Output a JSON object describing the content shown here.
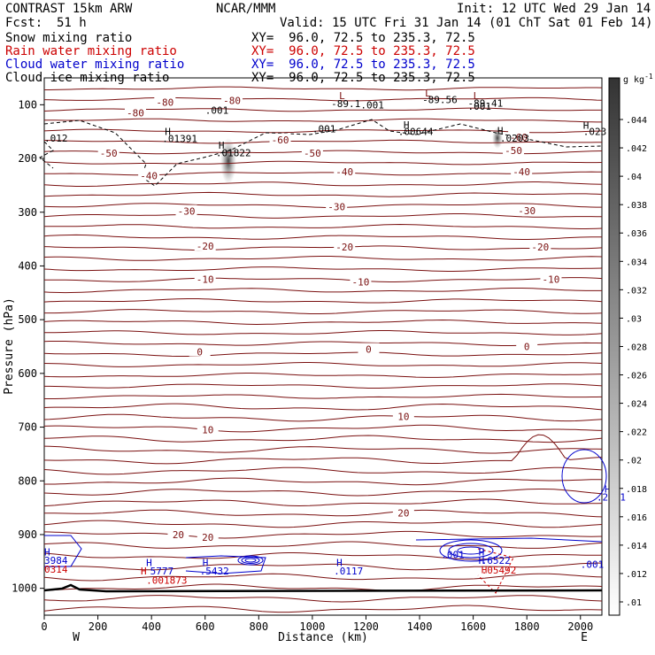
{
  "header": {
    "left1": "CONTRAST 15km ARW",
    "center1": "NCAR/MMM",
    "right1": "Init: 12 UTC Wed 29 Jan 14",
    "fcst_label": "Fcst:",
    "fcst_value": "51 h",
    "valid": "Valid: 15 UTC Fri 31 Jan 14 (01 ChT Sat 01 Feb 14)"
  },
  "fields": [
    {
      "name": "Snow mixing ratio",
      "xy": "XY=  96.0, 72.5 to 235.3, 72.5",
      "color": "#000000"
    },
    {
      "name": "Rain water mixing ratio",
      "xy": "XY=  96.0, 72.5 to 235.3, 72.5",
      "color": "#cc0000"
    },
    {
      "name": "Cloud water mixing ratio",
      "xy": "XY=  96.0, 72.5 to 235.3, 72.5",
      "color": "#0000cc"
    },
    {
      "name": "Cloud ice mixing ratio",
      "xy": "XY=  96.0, 72.5 to 235.3, 72.5",
      "color": "#000000"
    }
  ],
  "chart_data": {
    "type": "cross-section",
    "xlabel": "Distance (km)",
    "ylabel": "Pressure (hPa)",
    "xlim": [
      0,
      2080
    ],
    "ylim": [
      1050,
      50
    ],
    "x_ticks": [
      0,
      200,
      400,
      600,
      800,
      1000,
      1200,
      1400,
      1600,
      1800,
      2000
    ],
    "y_ticks": [
      100,
      200,
      300,
      400,
      500,
      600,
      700,
      800,
      900,
      1000
    ],
    "x_end_labels": {
      "left": "W",
      "right": "E"
    },
    "colorbar": {
      "unit": "g kg",
      "unit_exp": "-1",
      "ticks": [
        ".044",
        ".042",
        ".04",
        ".038",
        ".036",
        ".034",
        ".032",
        ".03",
        ".028",
        ".026",
        ".024",
        ".022",
        ".02",
        ".018",
        ".016",
        ".014",
        ".012",
        ".01"
      ],
      "color_low": "#ffffff",
      "color_high": "#333333"
    },
    "temperature_contours": {
      "color": "#7a1010",
      "labels": [
        {
          "text": "-80",
          "x": 450,
          "p": 95
        },
        {
          "text": "-80",
          "x": 700,
          "p": 92
        },
        {
          "text": "-80",
          "x": 340,
          "p": 115
        },
        {
          "text": "-60",
          "x": 880,
          "p": 165
        },
        {
          "text": "-60",
          "x": 1770,
          "p": 160
        },
        {
          "text": "-50",
          "x": 240,
          "p": 190
        },
        {
          "text": "-50",
          "x": 1000,
          "p": 190
        },
        {
          "text": "-50",
          "x": 1750,
          "p": 185
        },
        {
          "text": "-40",
          "x": 390,
          "p": 232
        },
        {
          "text": "-40",
          "x": 1780,
          "p": 225
        },
        {
          "text": "-40",
          "x": 1120,
          "p": 225
        },
        {
          "text": "-30",
          "x": 530,
          "p": 298
        },
        {
          "text": "-30",
          "x": 1090,
          "p": 290
        },
        {
          "text": "-30",
          "x": 1800,
          "p": 297
        },
        {
          "text": "-20",
          "x": 600,
          "p": 363
        },
        {
          "text": "-20",
          "x": 1120,
          "p": 365
        },
        {
          "text": "-20",
          "x": 1850,
          "p": 365
        },
        {
          "text": "-10",
          "x": 600,
          "p": 425
        },
        {
          "text": "-10",
          "x": 1180,
          "p": 430
        },
        {
          "text": "-10",
          "x": 1890,
          "p": 425
        },
        {
          "text": "0",
          "x": 580,
          "p": 560
        },
        {
          "text": "0",
          "x": 1210,
          "p": 555
        },
        {
          "text": "0",
          "x": 1800,
          "p": 550
        },
        {
          "text": "10",
          "x": 1340,
          "p": 680
        },
        {
          "text": "10",
          "x": 610,
          "p": 705
        },
        {
          "text": "20",
          "x": 1340,
          "p": 860
        },
        {
          "text": "20",
          "x": 500,
          "p": 900
        },
        {
          "text": "20",
          "x": 610,
          "p": 905
        }
      ]
    },
    "annotations": [
      {
        "text": "L",
        "x": 1100,
        "p": 83,
        "color": "#7a1010"
      },
      {
        "text": "-89.1",
        "x": 1070,
        "p": 98,
        "color": "#000000"
      },
      {
        "text": ".001",
        "x": 1180,
        "p": 100,
        "color": "#000000"
      },
      {
        "text": "L",
        "x": 1420,
        "p": 78,
        "color": "#7a1010"
      },
      {
        "text": "-89.56",
        "x": 1410,
        "p": 90,
        "color": "#000000"
      },
      {
        "text": "L",
        "x": 1600,
        "p": 83,
        "color": "#7a1010"
      },
      {
        "text": "-89.41",
        "x": 1580,
        "p": 97,
        "color": "#000000"
      },
      {
        "text": ".001",
        "x": 1580,
        "p": 103,
        "color": "#000000"
      },
      {
        "text": ".001",
        "x": 600,
        "p": 110,
        "color": "#000000"
      },
      {
        "text": ".001",
        "x": 1000,
        "p": 145,
        "color": "#000000"
      },
      {
        "text": "H",
        "x": 1340,
        "p": 137,
        "color": "#000000"
      },
      {
        "text": ".00644",
        "x": 1320,
        "p": 150,
        "color": "#000000"
      },
      {
        "text": "H",
        "x": 1690,
        "p": 148,
        "color": "#000000"
      },
      {
        "text": ".0203",
        "x": 1700,
        "p": 162,
        "color": "#000000"
      },
      {
        "text": "H",
        "x": 2010,
        "p": 138,
        "color": "#000000"
      },
      {
        "text": ".023",
        "x": 2010,
        "p": 150,
        "color": "#000000"
      },
      {
        "text": "H",
        "x": 450,
        "p": 150,
        "color": "#000000"
      },
      {
        "text": ".01391",
        "x": 440,
        "p": 163,
        "color": "#000000"
      },
      {
        "text": "H",
        "x": 650,
        "p": 175,
        "color": "#000000"
      },
      {
        "text": ".01822",
        "x": 640,
        "p": 189,
        "color": "#000000"
      },
      {
        "text": ".012",
        "x": 0,
        "p": 162,
        "color": "#000000"
      },
      {
        "text": "H",
        "x": 2090,
        "p": 815,
        "color": "#0000cc"
      },
      {
        "text": ".2631",
        "x": 2060,
        "p": 830,
        "color": "#0000cc"
      },
      {
        "text": ".001",
        "x": 1480,
        "p": 937,
        "color": "#0000cc"
      },
      {
        "text": "H",
        "x": 0,
        "p": 932,
        "color": "#0000cc"
      },
      {
        "text": "3984",
        "x": 0,
        "p": 948,
        "color": "#0000cc"
      },
      {
        "text": "0314",
        "x": 0,
        "p": 964,
        "color": "#cc0000"
      },
      {
        "text": "H",
        "x": 380,
        "p": 952,
        "color": "#0000cc"
      },
      {
        "text": "H",
        "x": 360,
        "p": 968,
        "color": "#cc0000"
      },
      {
        "text": "5777",
        "x": 395,
        "p": 968,
        "color": "#0000cc"
      },
      {
        "text": ".001873",
        "x": 380,
        "p": 985,
        "color": "#cc0000"
      },
      {
        "text": "H",
        "x": 590,
        "p": 952,
        "color": "#0000cc"
      },
      {
        "text": ".5432",
        "x": 580,
        "p": 968,
        "color": "#0000cc"
      },
      {
        "text": "H",
        "x": 1090,
        "p": 952,
        "color": "#0000cc"
      },
      {
        "text": ".0117",
        "x": 1080,
        "p": 968,
        "color": "#0000cc"
      },
      {
        "text": "H",
        "x": 1620,
        "p": 932,
        "color": "#0000cc"
      },
      {
        "text": "H",
        "x": 1620,
        "p": 948,
        "color": "#0000cc"
      },
      {
        "text": ".6522",
        "x": 1630,
        "p": 948,
        "color": "#0000cc"
      },
      {
        "text": "H",
        "x": 1630,
        "p": 965,
        "color": "#cc0000"
      },
      {
        "text": ".05492",
        "x": 1630,
        "p": 966,
        "color": "#cc0000"
      },
      {
        "text": ".001",
        "x": 2000,
        "p": 955,
        "color": "#0000cc"
      }
    ]
  }
}
